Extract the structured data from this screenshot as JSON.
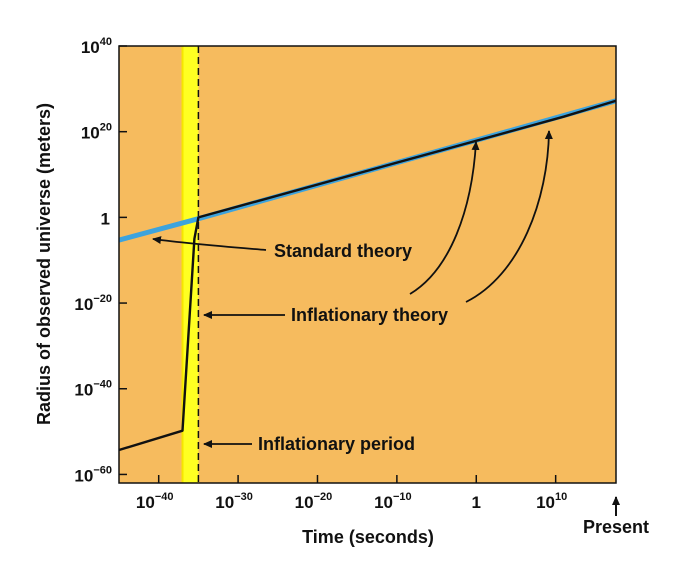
{
  "chart_data": {
    "type": "line",
    "xlabel": "Time (seconds)",
    "ylabel": "Radius of observed universe (meters)",
    "x_scale": "log",
    "y_scale": "log",
    "xlim_log10": [
      -45,
      17.6
    ],
    "ylim_log10": [
      -62,
      40
    ],
    "x_ticks": [
      {
        "base": "10",
        "exp": "−40",
        "log10": -40
      },
      {
        "base": "10",
        "exp": "−30",
        "log10": -30
      },
      {
        "base": "10",
        "exp": "−20",
        "log10": -20
      },
      {
        "base": "10",
        "exp": "−10",
        "log10": -10
      },
      {
        "base": "1",
        "exp": "",
        "log10": 0
      },
      {
        "base": "10",
        "exp": "10",
        "log10": 10
      }
    ],
    "y_ticks": [
      {
        "base": "10",
        "exp": "40",
        "log10": 40
      },
      {
        "base": "10",
        "exp": "20",
        "log10": 20
      },
      {
        "base": "1",
        "exp": "",
        "log10": 0
      },
      {
        "base": "10",
        "exp": "−20",
        "log10": -20
      },
      {
        "base": "10",
        "exp": "−40",
        "log10": -40
      },
      {
        "base": "10",
        "exp": "−60",
        "log10": -60
      }
    ],
    "present_label": "Present",
    "present_log10_x": 17.6,
    "inflationary_period_log10_x": [
      -37,
      -35
    ],
    "series": [
      {
        "key": "standard",
        "color": "#3da3dd",
        "points_log10": [
          [
            -45,
            -5.3
          ],
          [
            -35,
            -0.3
          ],
          [
            17.6,
            27.2
          ]
        ]
      },
      {
        "key": "inflationary",
        "color": "#111111",
        "points_log10": [
          [
            -45,
            -54.3
          ],
          [
            -37,
            -49.8
          ],
          [
            -35.5,
            -5
          ],
          [
            -35,
            0
          ],
          [
            11,
            23.5
          ],
          [
            17.6,
            27.2
          ]
        ]
      }
    ],
    "annotations": [
      {
        "key": "standard",
        "text": "Standard theory"
      },
      {
        "key": "inflationary",
        "text": "Inflationary theory"
      },
      {
        "key": "period",
        "text": "Inflationary period"
      }
    ],
    "colors": {
      "background": "#f6bb5e",
      "inflation_band": "#ffff22",
      "inflation_band_edge": "#f5e500",
      "standard_line": "#3da3dd",
      "inflationary_line": "#111111"
    }
  }
}
